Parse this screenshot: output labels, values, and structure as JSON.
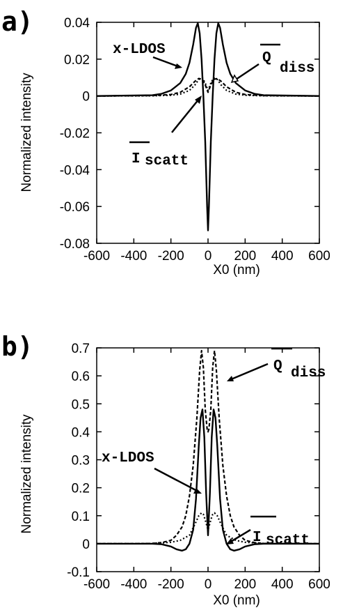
{
  "chart_data": [
    {
      "panel": "a)",
      "type": "line",
      "xlabel": "X0 (nm)",
      "ylabel": "Normalized intensity",
      "xlim": [
        -600,
        600
      ],
      "ylim": [
        -0.08,
        0.04
      ],
      "xticks": [
        -600,
        -400,
        -200,
        0,
        200,
        400,
        600
      ],
      "yticks": [
        -0.08,
        -0.06,
        -0.04,
        -0.02,
        0,
        0.02,
        0.04
      ],
      "ytick_labels": [
        "-0.08",
        "-0.06",
        "-0.04",
        "-0.02",
        "0",
        "0.02",
        "0.04"
      ],
      "grid": false,
      "series": [
        {
          "name": "x-LDOS",
          "style": "solid",
          "x": [
            -600,
            -300,
            -250,
            -200,
            -150,
            -120,
            -100,
            -80,
            -65,
            -55,
            -45,
            -35,
            -25,
            -15,
            -5,
            0,
            5,
            15,
            25,
            35,
            45,
            55,
            65,
            80,
            100,
            120,
            150,
            200,
            250,
            300,
            600
          ],
          "y": [
            0,
            0.0004,
            0.0012,
            0.003,
            0.007,
            0.012,
            0.018,
            0.028,
            0.037,
            0.0395,
            0.034,
            0.02,
            0,
            -0.025,
            -0.06,
            -0.073,
            -0.06,
            -0.025,
            0,
            0.02,
            0.034,
            0.0395,
            0.037,
            0.028,
            0.018,
            0.012,
            0.007,
            0.003,
            0.0012,
            0.0004,
            0
          ]
        },
        {
          "name": "Q diss",
          "style": "dashed",
          "x": [
            -600,
            -300,
            -200,
            -150,
            -100,
            -70,
            -50,
            -30,
            -15,
            0,
            15,
            30,
            50,
            70,
            100,
            150,
            200,
            300,
            600
          ],
          "y": [
            0,
            0.0002,
            0.0008,
            0.002,
            0.005,
            0.008,
            0.0095,
            0.009,
            0.006,
            0.002,
            0.006,
            0.009,
            0.0095,
            0.008,
            0.005,
            0.002,
            0.0008,
            0.0002,
            0
          ]
        },
        {
          "name": "I scatt",
          "style": "dotted",
          "x": [
            -600,
            -300,
            -200,
            -150,
            -100,
            -70,
            -50,
            -30,
            -15,
            0,
            15,
            30,
            50,
            70,
            100,
            150,
            200,
            300,
            600
          ],
          "y": [
            0,
            0.0001,
            0.0004,
            0.001,
            0.003,
            0.006,
            0.009,
            0.0098,
            0.007,
            0.003,
            0.007,
            0.0098,
            0.009,
            0.006,
            0.003,
            0.001,
            0.0004,
            0.0001,
            0
          ]
        }
      ],
      "annotations": {
        "ldos": "x-LDOS",
        "qdiss_main": "Q",
        "qdiss_sub": "diss",
        "iscatt_main": "I",
        "iscatt_sub": "scatt"
      }
    },
    {
      "panel": "b)",
      "type": "line",
      "xlabel": "X0 (nm)",
      "ylabel": "Normalized intensity",
      "xlim": [
        -600,
        600
      ],
      "ylim": [
        -0.1,
        0.7
      ],
      "xticks": [
        -600,
        -400,
        -200,
        0,
        200,
        400,
        600
      ],
      "yticks": [
        -0.1,
        0,
        0.1,
        0.2,
        0.3,
        0.4,
        0.5,
        0.6,
        0.7
      ],
      "ytick_labels": [
        "-0.1",
        "0",
        "0.1",
        "0.2",
        "0.3",
        "0.4",
        "0.5",
        "0.6",
        "0.7"
      ],
      "grid": false,
      "series": [
        {
          "name": "x-LDOS",
          "style": "solid",
          "x": [
            -600,
            -300,
            -250,
            -200,
            -170,
            -140,
            -120,
            -100,
            -80,
            -65,
            -50,
            -40,
            -30,
            -20,
            -10,
            0,
            10,
            20,
            30,
            40,
            50,
            65,
            80,
            100,
            120,
            140,
            170,
            200,
            250,
            300,
            600
          ],
          "y": [
            0,
            0,
            -0.002,
            -0.01,
            -0.02,
            -0.025,
            -0.02,
            0,
            0.05,
            0.16,
            0.35,
            0.45,
            0.48,
            0.38,
            0.18,
            0.03,
            0.18,
            0.38,
            0.48,
            0.45,
            0.35,
            0.16,
            0.05,
            0,
            -0.02,
            -0.025,
            -0.02,
            -0.01,
            -0.002,
            0,
            0
          ]
        },
        {
          "name": "Q diss",
          "style": "dashed",
          "x": [
            -600,
            -400,
            -300,
            -250,
            -200,
            -170,
            -140,
            -120,
            -100,
            -80,
            -60,
            -45,
            -35,
            -25,
            -15,
            -5,
            0,
            5,
            15,
            25,
            35,
            45,
            60,
            80,
            100,
            120,
            140,
            170,
            200,
            250,
            300,
            400,
            600
          ],
          "y": [
            0,
            0,
            0.001,
            0.004,
            0.012,
            0.03,
            0.06,
            0.1,
            0.17,
            0.28,
            0.45,
            0.62,
            0.69,
            0.63,
            0.48,
            0.41,
            0.4,
            0.41,
            0.48,
            0.63,
            0.69,
            0.62,
            0.45,
            0.28,
            0.17,
            0.1,
            0.06,
            0.03,
            0.012,
            0.004,
            0.001,
            0,
            0
          ]
        },
        {
          "name": "I scatt",
          "style": "dotted",
          "x": [
            -600,
            -400,
            -300,
            -200,
            -150,
            -100,
            -70,
            -50,
            -35,
            -25,
            -15,
            -5,
            0,
            5,
            15,
            25,
            35,
            50,
            70,
            100,
            150,
            200,
            300,
            400,
            600
          ],
          "y": [
            0,
            0,
            0.001,
            0.005,
            0.012,
            0.03,
            0.07,
            0.1,
            0.11,
            0.105,
            0.085,
            0.06,
            0.05,
            0.06,
            0.085,
            0.105,
            0.11,
            0.1,
            0.07,
            0.03,
            0.012,
            0.005,
            0.001,
            0,
            0
          ]
        }
      ],
      "annotations": {
        "ldos": "x-LDOS",
        "qdiss_main": "Q",
        "qdiss_sub": "diss",
        "iscatt_main": "I",
        "iscatt_sub": "scatt"
      }
    }
  ]
}
